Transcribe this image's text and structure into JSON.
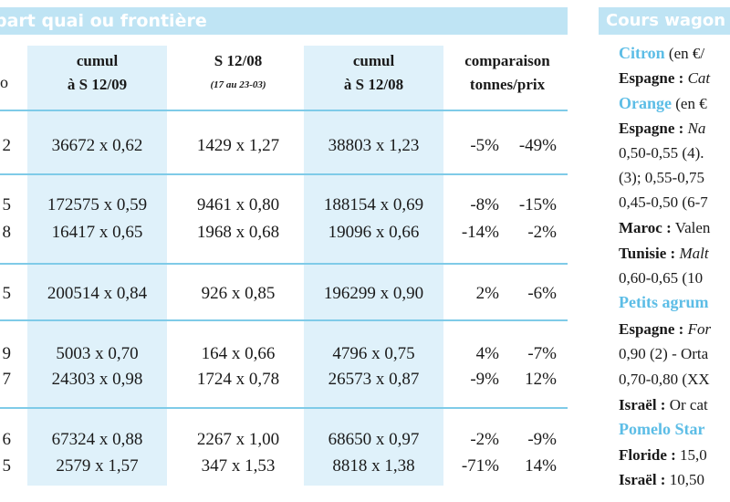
{
  "left_banner": "part quai ou frontière",
  "headers": {
    "col2_line1": "cumul",
    "col2_line2": "à S 12/09",
    "col3_line1": "S 12/08",
    "col3_line2": "(17 au 23-03)",
    "col4_line1": "cumul",
    "col4_line2": "à S 12/08",
    "col5_line1": "comparaison",
    "col5_line2": "tonnes/prix",
    "col1_fragment": "o"
  },
  "rows": [
    {
      "edge": "2",
      "cumul09": "36672 x 0,62",
      "s1208": "1429 x 1,27",
      "cumul08": "38803 x 1,23",
      "pct_t": "-5%",
      "pct_p": "-49%"
    },
    {
      "edge": "5",
      "cumul09": "172575 x 0,59",
      "s1208": "9461 x 0,80",
      "cumul08": "188154 x 0,69",
      "pct_t": "-8%",
      "pct_p": "-15%"
    },
    {
      "edge": "8",
      "cumul09": "16417 x 0,65",
      "s1208": "1968 x 0,68",
      "cumul08": "19096 x 0,66",
      "pct_t": "-14%",
      "pct_p": "-2%"
    },
    {
      "edge": "5",
      "cumul09": "200514 x 0,84",
      "s1208": "926 x 0,85",
      "cumul08": "196299 x 0,90",
      "pct_t": "2%",
      "pct_p": "-6%"
    },
    {
      "edge": "9",
      "cumul09": "5003 x 0,70",
      "s1208": "164 x 0,66",
      "cumul08": "4796 x 0,75",
      "pct_t": "4%",
      "pct_p": "-7%"
    },
    {
      "edge": "7",
      "cumul09": "24303 x 0,98",
      "s1208": "1724 x 0,78",
      "cumul08": "26573 x 0,87",
      "pct_t": "-9%",
      "pct_p": "12%"
    },
    {
      "edge": "6",
      "cumul09": "67324 x 0,88",
      "s1208": "2267 x 1,00",
      "cumul08": "68650 x 0,97",
      "pct_t": "-2%",
      "pct_p": "-9%"
    },
    {
      "edge": "5",
      "cumul09": "2579 x 1,57",
      "s1208": "347 x 1,53",
      "cumul08": "8818 x 1,38",
      "pct_t": "-71%",
      "pct_p": "14%"
    }
  ],
  "right_panel": {
    "banner": "Cours wagon",
    "l01_head": "Citron",
    "l01_rest": " (en €/",
    "l02_b": "Espagne :",
    "l02_i": " Cat",
    "l03_head": "Orange",
    "l03_rest": " (en €",
    "l04_b": "Espagne :",
    "l04_i": "  Na",
    "l05": "0,50-0,55 (4).",
    "l06": "(3); 0,55-0,75",
    "l07": "0,45-0,50 (6-7",
    "l08_b": "Maroc :",
    "l08_rest": " Valen",
    "l09_b": "Tunisie :",
    "l09_i": " Malt",
    "l10": "0,60-0,65 (10",
    "l11_head": "Petits agrum",
    "l12_b": "Espagne :",
    "l12_i": " For",
    "l13": "0,90 (2) - Orta",
    "l14": "0,70-0,80 (XX",
    "l15_b": "Israël :",
    "l15_rest": " Or cat",
    "l16_head": "Pomelo Star",
    "l17_b": "Floride :",
    "l17_rest": " 15,0",
    "l18_b": "Israël :",
    "l18_rest": " 10,50"
  }
}
